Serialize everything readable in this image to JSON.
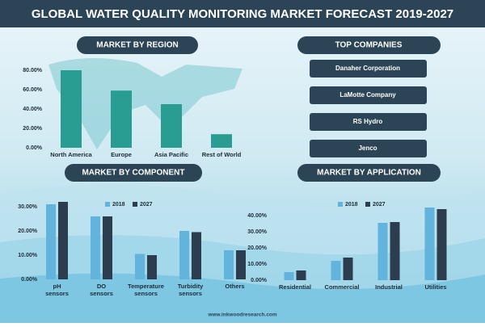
{
  "title": "GLOBAL WATER QUALITY MONITORING MARKET FORECAST 2019-2027",
  "source": "www.inkwoodresearch.com",
  "top_companies": {
    "heading": "TOP COMPANIES",
    "items": [
      "Danaher Corporation",
      "LaMotte Company",
      "RS Hydro",
      "Jenco"
    ]
  },
  "chart_data": [
    {
      "type": "bar",
      "title": "MARKET BY REGION",
      "categories": [
        "North America",
        "Europe",
        "Asia Pacific",
        "Rest of World"
      ],
      "values": [
        80,
        59,
        45,
        14
      ],
      "color": "#2a9d93",
      "ylim": [
        0,
        80
      ],
      "yticks": [
        {
          "value": 0,
          "label": "0.00%"
        },
        {
          "value": 20,
          "label": "20.00%"
        },
        {
          "value": 40,
          "label": "40.00%"
        },
        {
          "value": 60,
          "label": "60.00%"
        },
        {
          "value": 80,
          "label": "80.00%"
        }
      ]
    },
    {
      "type": "grouped_bar",
      "title": "MARKET BY COMPONENT",
      "categories": [
        "pH sensors",
        "DO sensors",
        "Temperature sensors",
        "Turbidity sensors",
        "Others"
      ],
      "series": [
        {
          "name": "2018",
          "color": "#62b4dc",
          "values": [
            31,
            26,
            10.5,
            20,
            12
          ]
        },
        {
          "name": "2027",
          "color": "#2b3d4f",
          "values": [
            32,
            26,
            10,
            19.5,
            12
          ]
        }
      ],
      "ylim": [
        0,
        32
      ],
      "yticks": [
        {
          "value": 0,
          "label": "0.00%"
        },
        {
          "value": 10,
          "label": "10.00%"
        },
        {
          "value": 20,
          "label": "20.00%"
        },
        {
          "value": 30,
          "label": "30.00%"
        }
      ]
    },
    {
      "type": "grouped_bar",
      "title": "MARKET BY APPLICATION",
      "categories": [
        "Residential",
        "Commercial",
        "Industrial",
        "Utilities"
      ],
      "series": [
        {
          "name": "2018",
          "color": "#62b4dc",
          "values": [
            5,
            12,
            35.5,
            45
          ]
        },
        {
          "name": "2027",
          "color": "#2b3d4f",
          "values": [
            6,
            14,
            36,
            44
          ]
        }
      ],
      "ylim": [
        0,
        45
      ],
      "yticks": [
        {
          "value": 0,
          "label": "0.00%"
        },
        {
          "value": 10,
          "label": "10.00%"
        },
        {
          "value": 20,
          "label": "20.00%"
        },
        {
          "value": 30,
          "label": "30.00%"
        },
        {
          "value": 40,
          "label": "40.00%"
        }
      ]
    }
  ]
}
